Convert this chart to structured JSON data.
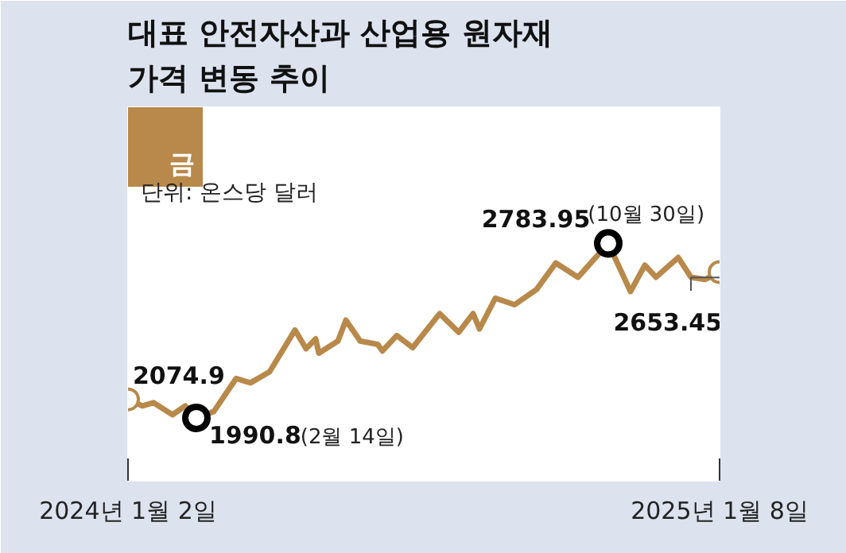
{
  "chart_data": {
    "type": "line",
    "title": "대표 안전자산과 산업용 원자재\n가격 변동 추이",
    "x": [
      "2024-01-02",
      "2024-01-11",
      "2024-01-18",
      "2024-01-30",
      "2024-02-07",
      "2024-02-14",
      "2024-02-25",
      "2024-03-10",
      "2024-03-19",
      "2024-03-31",
      "2024-04-16",
      "2024-04-23",
      "2024-04-29",
      "2024-05-01",
      "2024-05-13",
      "2024-05-18",
      "2024-05-27",
      "2024-06-07",
      "2024-06-10",
      "2024-06-19",
      "2024-06-29",
      "2024-07-16",
      "2024-07-28",
      "2024-08-06",
      "2024-08-10",
      "2024-08-20",
      "2024-09-01",
      "2024-09-15",
      "2024-09-27",
      "2024-10-11",
      "2024-10-30",
      "2024-11-13",
      "2024-11-22",
      "2024-11-29",
      "2024-12-13",
      "2024-12-21",
      "2024-12-30",
      "2025-01-08"
    ],
    "series": [
      {
        "name": "금",
        "color": "#b8894a",
        "values": [
          2074.9,
          2045,
          2060,
          2005,
          2045,
          1990.8,
          2020,
          2170,
          2150,
          2200,
          2390,
          2305,
          2350,
          2285,
          2340,
          2435,
          2340,
          2325,
          2295,
          2365,
          2310,
          2465,
          2380,
          2465,
          2395,
          2535,
          2505,
          2575,
          2695,
          2630,
          2783.95,
          2565,
          2685,
          2630,
          2720,
          2630,
          2620,
          2653.45
        ],
        "value_labels": [
          "2074.9",
          null,
          null,
          null,
          null,
          "1990.8",
          null,
          null,
          null,
          null,
          null,
          null,
          null,
          null,
          null,
          null,
          null,
          null,
          null,
          null,
          null,
          null,
          null,
          null,
          null,
          null,
          null,
          null,
          null,
          null,
          "2783.95",
          null,
          null,
          null,
          null,
          null,
          null,
          "2653.45"
        ]
      }
    ],
    "annotations": [
      "단위: 온스당 달러",
      "(2월 14일)",
      "(10월 30일)"
    ],
    "xticks": [
      {
        "value": "2024-01-02",
        "label": "2024년 1월 2일"
      },
      {
        "value": "2025-01-08",
        "label": "2025년 1월 8일"
      }
    ],
    "xlim": [
      "2024-01-02",
      "2025-01-08"
    ],
    "tick_labels": "x",
    "grid": false,
    "line_style": "solid"
  }
}
